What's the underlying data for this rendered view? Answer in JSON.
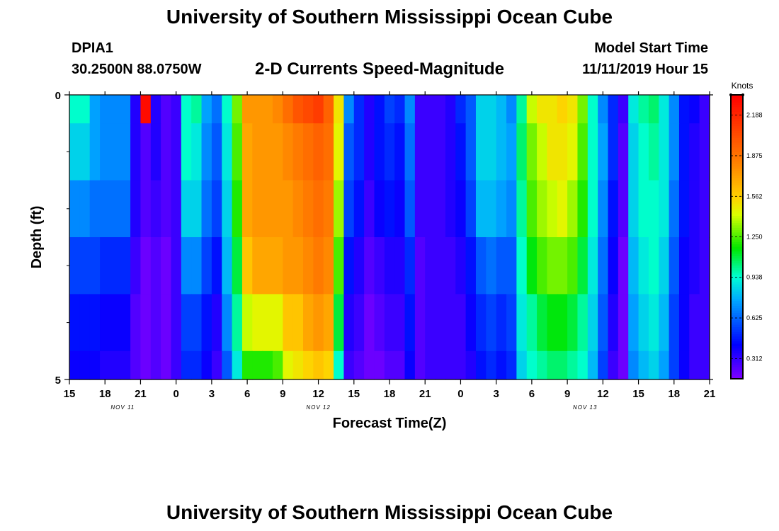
{
  "header": {
    "title": "University of Southern Mississippi Ocean Cube",
    "station": "DPIA1",
    "coords": "30.2500N 88.0750W",
    "subtitle": "2-D Currents Speed-Magnitude",
    "model_start_label": "Model Start Time",
    "model_start_value": "11/11/2019 Hour 15"
  },
  "footer": {
    "title": "University of Southern Mississippi Ocean Cube"
  },
  "chart_data": {
    "type": "heatmap",
    "title": "2-D Currents Speed-Magnitude",
    "xlabel": "Forecast Time(Z)",
    "ylabel": "Depth (ft)",
    "x_unit": "hours since 11/11/2019 15Z",
    "xlim": [
      0,
      54
    ],
    "ylim": [
      0,
      5
    ],
    "y_ticks": [
      0,
      5
    ],
    "y_minor_ticks": [
      1,
      2,
      3,
      4
    ],
    "x_tick_labels": [
      "15",
      "18",
      "21",
      "0",
      "3",
      "6",
      "9",
      "12",
      "15",
      "18",
      "21",
      "0",
      "3",
      "6",
      "9",
      "12",
      "15",
      "18",
      "21"
    ],
    "date_labels": [
      {
        "text": "NOV 11",
        "hour": 4.5
      },
      {
        "text": "NOV 12",
        "hour": 21
      },
      {
        "text": "NOV 13",
        "hour": 43.5
      }
    ],
    "depth_bands": [
      0,
      0.5,
      1.5,
      2.5,
      3.5,
      4.5,
      5
    ],
    "colorbar": {
      "label": "Knots",
      "min": 0.156,
      "max": 2.344,
      "ticks": [
        "0.312",
        "0.625",
        "0.938",
        "1.250",
        "1.562",
        "1.875",
        "2.188"
      ]
    },
    "speed_knots": [
      [
        0.95,
        0.95,
        0.75,
        0.7,
        0.7,
        0.7,
        0.35,
        2.3,
        0.35,
        0.25,
        0.3,
        0.95,
        1.0,
        0.75,
        0.65,
        0.95,
        1.3,
        1.75,
        1.75,
        1.75,
        1.8,
        1.9,
        2.0,
        2.05,
        2.1,
        1.95,
        1.5,
        0.7,
        0.5,
        0.35,
        0.45,
        0.55,
        0.5,
        0.7,
        0.3,
        0.3,
        0.3,
        0.35,
        0.5,
        0.6,
        0.85,
        0.85,
        0.8,
        0.7,
        1.0,
        1.4,
        1.5,
        1.5,
        1.55,
        1.5,
        1.3,
        0.95,
        0.7,
        0.5,
        0.3,
        0.9,
        1.0,
        1.05,
        0.9,
        0.7,
        0.45,
        0.4,
        0.3
      ],
      [
        0.85,
        0.85,
        0.75,
        0.7,
        0.7,
        0.7,
        0.35,
        0.25,
        0.35,
        0.25,
        0.3,
        0.95,
        0.9,
        0.7,
        0.6,
        0.9,
        1.25,
        1.7,
        1.75,
        1.75,
        1.75,
        1.8,
        1.85,
        1.9,
        1.95,
        1.9,
        1.45,
        0.6,
        0.5,
        0.35,
        0.45,
        0.5,
        0.45,
        0.65,
        0.3,
        0.3,
        0.3,
        0.35,
        0.45,
        0.6,
        0.85,
        0.85,
        0.8,
        0.75,
        1.05,
        1.3,
        1.4,
        1.5,
        1.5,
        1.45,
        1.25,
        0.95,
        0.75,
        0.5,
        0.25,
        0.85,
        0.95,
        1.0,
        0.9,
        0.7,
        0.45,
        0.35,
        0.3
      ],
      [
        0.7,
        0.7,
        0.65,
        0.65,
        0.65,
        0.65,
        0.35,
        0.25,
        0.3,
        0.25,
        0.3,
        0.85,
        0.85,
        0.65,
        0.55,
        0.85,
        1.2,
        1.7,
        1.75,
        1.75,
        1.75,
        1.75,
        1.8,
        1.85,
        1.9,
        1.85,
        1.35,
        0.55,
        0.45,
        0.3,
        0.4,
        0.45,
        0.4,
        0.6,
        0.3,
        0.3,
        0.3,
        0.35,
        0.4,
        0.55,
        0.8,
        0.8,
        0.75,
        0.7,
        1.0,
        1.25,
        1.35,
        1.4,
        1.45,
        1.35,
        1.2,
        0.95,
        0.7,
        0.45,
        0.25,
        0.85,
        0.95,
        0.95,
        0.9,
        0.65,
        0.45,
        0.35,
        0.3
      ],
      [
        0.55,
        0.55,
        0.55,
        0.5,
        0.5,
        0.5,
        0.3,
        0.2,
        0.25,
        0.2,
        0.3,
        0.7,
        0.7,
        0.55,
        0.45,
        0.8,
        1.1,
        1.6,
        1.7,
        1.7,
        1.7,
        1.75,
        1.75,
        1.8,
        1.85,
        1.8,
        1.25,
        0.45,
        0.35,
        0.25,
        0.3,
        0.35,
        0.35,
        0.5,
        0.25,
        0.3,
        0.3,
        0.3,
        0.35,
        0.45,
        0.6,
        0.65,
        0.6,
        0.6,
        0.95,
        1.15,
        1.25,
        1.3,
        1.3,
        1.25,
        1.1,
        0.9,
        0.65,
        0.4,
        0.2,
        0.8,
        0.9,
        0.95,
        0.85,
        0.6,
        0.4,
        0.35,
        0.3
      ],
      [
        0.45,
        0.45,
        0.45,
        0.4,
        0.4,
        0.4,
        0.25,
        0.2,
        0.25,
        0.2,
        0.3,
        0.55,
        0.55,
        0.45,
        0.35,
        0.7,
        1.0,
        1.4,
        1.45,
        1.45,
        1.45,
        1.6,
        1.6,
        1.7,
        1.75,
        1.7,
        1.1,
        0.35,
        0.3,
        0.2,
        0.25,
        0.3,
        0.3,
        0.45,
        0.25,
        0.3,
        0.3,
        0.3,
        0.3,
        0.4,
        0.5,
        0.55,
        0.5,
        0.55,
        0.9,
        1.0,
        1.1,
        1.15,
        1.15,
        1.1,
        1.0,
        0.85,
        0.6,
        0.35,
        0.2,
        0.75,
        0.85,
        0.9,
        0.8,
        0.55,
        0.4,
        0.3,
        0.3
      ],
      [
        0.4,
        0.4,
        0.4,
        0.35,
        0.35,
        0.35,
        0.25,
        0.2,
        0.25,
        0.2,
        0.3,
        0.5,
        0.5,
        0.4,
        0.3,
        0.6,
        0.9,
        1.2,
        1.2,
        1.2,
        1.25,
        1.45,
        1.5,
        1.55,
        1.6,
        1.55,
        0.95,
        0.3,
        0.25,
        0.2,
        0.2,
        0.25,
        0.25,
        0.4,
        0.25,
        0.3,
        0.3,
        0.3,
        0.3,
        0.35,
        0.45,
        0.5,
        0.45,
        0.5,
        0.85,
        0.95,
        1.0,
        1.05,
        1.05,
        1.0,
        0.95,
        0.8,
        0.55,
        0.3,
        0.2,
        0.7,
        0.8,
        0.85,
        0.75,
        0.55,
        0.4,
        0.3,
        0.3
      ]
    ]
  }
}
